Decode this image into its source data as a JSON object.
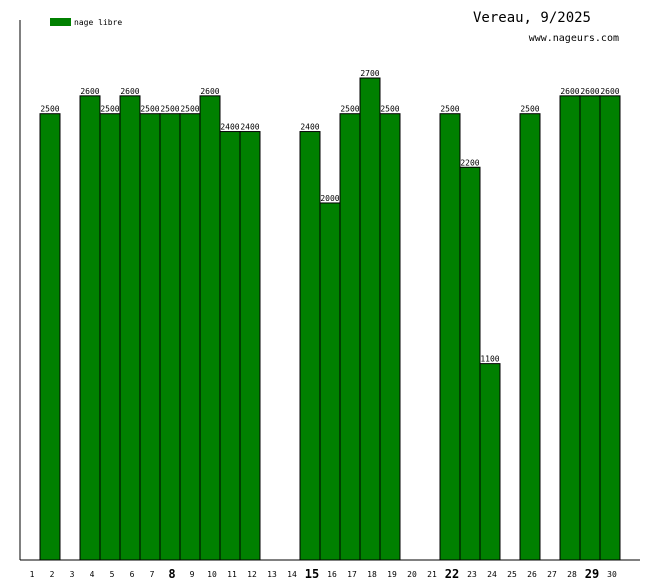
{
  "title": "Vereau, 9/2025",
  "site": "www.nageurs.com",
  "colors": {
    "bar": "#008000",
    "bar_stroke": "#000000",
    "axis": "#000000"
  },
  "chart_data": {
    "type": "bar",
    "categories": [
      "1",
      "2",
      "3",
      "4",
      "5",
      "6",
      "7",
      "8",
      "9",
      "10",
      "11",
      "12",
      "13",
      "14",
      "15",
      "16",
      "17",
      "18",
      "19",
      "20",
      "21",
      "22",
      "23",
      "24",
      "25",
      "26",
      "27",
      "28",
      "29",
      "30"
    ],
    "series": [
      {
        "name": "nage libre",
        "values": [
          null,
          2500,
          null,
          2600,
          2500,
          2600,
          2500,
          2500,
          2500,
          2600,
          2400,
          2400,
          null,
          null,
          2400,
          2000,
          2500,
          2700,
          2500,
          null,
          null,
          2500,
          2200,
          1100,
          null,
          2500,
          null,
          2600,
          2600,
          2600
        ],
        "labels": [
          "",
          "2500",
          "",
          "2600",
          "2500",
          "2600",
          "2500",
          "2500",
          "2500",
          "2600",
          "2400",
          "2400",
          "",
          "",
          "2400",
          "2000",
          "2500",
          "2700",
          "2500",
          "",
          "",
          "2500",
          "2200",
          "1100",
          "",
          "2500",
          "",
          "2600",
          "2600",
          "2600"
        ]
      }
    ],
    "emphasized_ticks": [
      "8",
      "15",
      "22",
      "29"
    ],
    "ylim": [
      0,
      2700
    ],
    "legend_position": "top-left",
    "grid": false
  }
}
